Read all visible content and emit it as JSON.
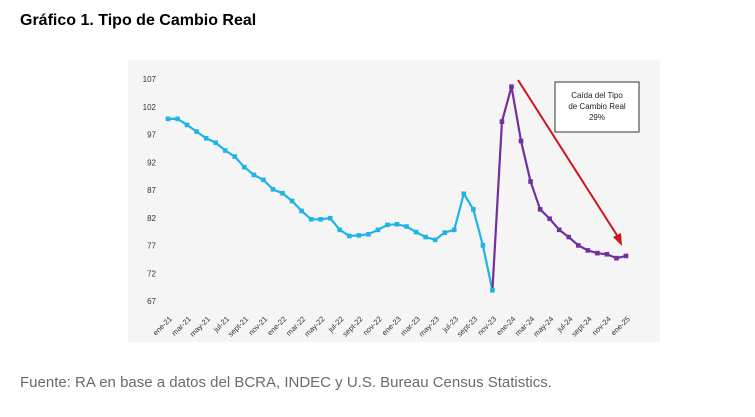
{
  "chart_data": {
    "type": "line",
    "title": "Gráfico 1. Tipo de Cambio Real",
    "source": "Fuente: RA en base a datos del BCRA, INDEC y U.S. Bureau Census Statistics.",
    "annotation": [
      "Caída del Tipo",
      "de Cambio Real",
      "29%"
    ],
    "categories": [
      "ene-21",
      null,
      "mar-21",
      null,
      "may-21",
      null,
      "jul-21",
      null,
      "sept-21",
      null,
      "nov-21",
      null,
      "ene-22",
      null,
      "mar-22",
      null,
      "may-22",
      null,
      "jul-22",
      null,
      "sept-22",
      null,
      "nov-22",
      null,
      "ene-23",
      null,
      "mar-23",
      null,
      "may-23",
      null,
      "jul-23",
      null,
      "sept-23",
      null,
      "nov-23",
      null,
      "ene-24",
      null,
      "mar-24",
      null,
      "may-24",
      null,
      "jul-24",
      null,
      "sept-24",
      null,
      "nov-24",
      null,
      "ene-25"
    ],
    "series": [
      {
        "color": "#1eb4e6",
        "values": [
          100,
          100,
          98.9,
          97.7,
          96.5,
          95.7,
          94.3,
          93.2,
          91.3,
          89.9,
          89.0,
          87.3,
          86.6,
          85.2,
          83.4,
          81.9,
          81.9,
          82.1,
          80.0,
          78.9,
          79.0,
          79.2,
          80.0,
          80.9,
          81.0,
          80.6,
          79.6,
          78.7,
          78.2,
          79.5,
          80.0,
          86.5,
          83.7,
          77.2,
          69.1,
          null,
          null,
          null,
          null,
          null,
          null,
          null,
          null,
          null,
          null,
          null,
          null,
          null,
          null
        ]
      },
      {
        "color": "#7030a0",
        "values": [
          null,
          null,
          null,
          null,
          null,
          null,
          null,
          null,
          null,
          null,
          null,
          null,
          null,
          null,
          null,
          null,
          null,
          null,
          null,
          null,
          null,
          null,
          null,
          null,
          null,
          null,
          null,
          null,
          null,
          null,
          null,
          null,
          null,
          null,
          69.1,
          99.5,
          105.8,
          96.0,
          88.7,
          83.7,
          82.0,
          80.0,
          78.7,
          77.2,
          76.3,
          75.8,
          75.6,
          74.9,
          75.3
        ]
      }
    ],
    "ylim": [
      67,
      107
    ],
    "yticks": [
      67,
      72,
      77,
      82,
      87,
      92,
      97,
      102,
      107
    ],
    "grid": false
  }
}
